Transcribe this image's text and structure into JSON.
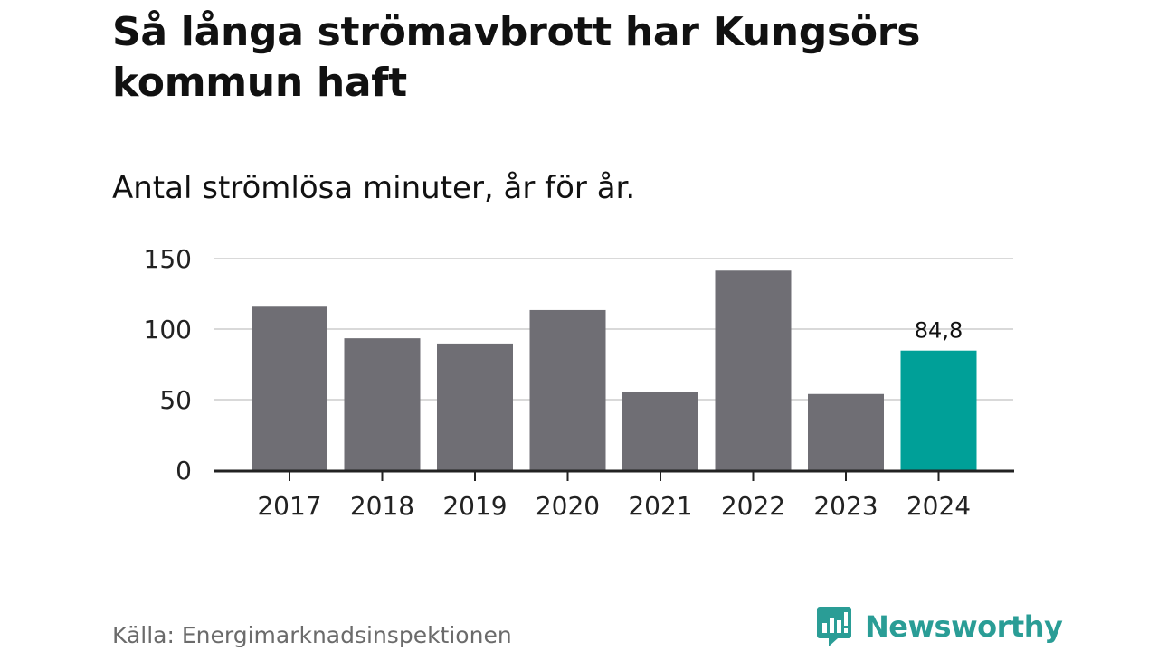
{
  "title": "Så långa strömavbrott har Kungsörs kommun haft",
  "subtitle": "Antal strömlösa minuter, år för år.",
  "source": "Källa: Energimarknadsinspektionen",
  "brand": {
    "name": "Newsworthy",
    "icon": "newsworthy-logo-icon"
  },
  "colors": {
    "bar": "#6f6e74",
    "highlight": "#00a098",
    "grid": "#d9d9d9",
    "axis": "#222222",
    "brand": "#2a9d96"
  },
  "chart_data": {
    "type": "bar",
    "title": "Så långa strömavbrott har Kungsörs kommun haft",
    "subtitle": "Antal strömlösa minuter, år för år.",
    "xlabel": "",
    "ylabel": "",
    "categories": [
      "2017",
      "2018",
      "2019",
      "2020",
      "2021",
      "2022",
      "2023",
      "2024"
    ],
    "values": [
      116.5,
      93.5,
      89.8,
      113.5,
      55.5,
      141.5,
      54.0,
      84.8
    ],
    "highlight_index": 7,
    "data_labels": [
      {
        "index": 7,
        "text": "84,8"
      }
    ],
    "ylim": [
      0,
      150
    ],
    "yticks": [
      0,
      50,
      100,
      150
    ],
    "grid": true,
    "legend": "none"
  }
}
